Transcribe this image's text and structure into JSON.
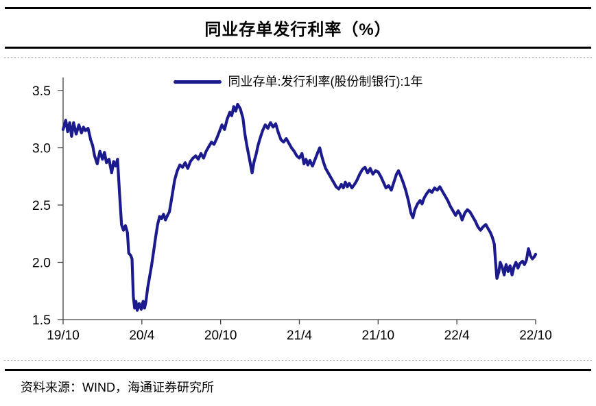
{
  "header": {
    "title": "同业存单发行利率（%）"
  },
  "legend": {
    "label": "同业存单:发行利率(股份制银行):1年"
  },
  "footer": {
    "source": "资料来源：WIND，海通证券研究所"
  },
  "colors": {
    "line": "#1b1b8e",
    "axis": "#404040",
    "text": "#000000",
    "panel_border": "#b0b0b0"
  },
  "chart_data": {
    "type": "line",
    "title": "同业存单发行利率（%）",
    "xlabel": "",
    "ylabel": "",
    "ylim": [
      1.5,
      3.5
    ],
    "xlim": [
      0,
      36
    ],
    "grid": false,
    "legend_position": "top-center",
    "x_unit": "months since 2019-10",
    "yticks": [
      "3.5",
      "3.0",
      "2.5",
      "2.0",
      "1.5"
    ],
    "xticks": [
      {
        "m": 0,
        "label": "19/10"
      },
      {
        "m": 6,
        "label": "20/4"
      },
      {
        "m": 12,
        "label": "20/10"
      },
      {
        "m": 18,
        "label": "21/4"
      },
      {
        "m": 24,
        "label": "21/10"
      },
      {
        "m": 30,
        "label": "22/4"
      },
      {
        "m": 36,
        "label": "22/10"
      }
    ],
    "series": [
      {
        "name": "同业存单:发行利率(股份制银行):1年",
        "points": [
          [
            0.0,
            3.16
          ],
          [
            0.2,
            3.24
          ],
          [
            0.35,
            3.14
          ],
          [
            0.5,
            3.22
          ],
          [
            0.65,
            3.1
          ],
          [
            0.8,
            3.22
          ],
          [
            1.0,
            3.12
          ],
          [
            1.2,
            3.2
          ],
          [
            1.4,
            3.13
          ],
          [
            1.55,
            3.18
          ],
          [
            1.7,
            3.15
          ],
          [
            1.9,
            3.17
          ],
          [
            2.1,
            3.07
          ],
          [
            2.25,
            3.02
          ],
          [
            2.4,
            2.93
          ],
          [
            2.6,
            2.86
          ],
          [
            2.8,
            2.97
          ],
          [
            3.0,
            2.9
          ],
          [
            3.15,
            2.96
          ],
          [
            3.3,
            2.87
          ],
          [
            3.5,
            2.9
          ],
          [
            3.7,
            2.78
          ],
          [
            3.85,
            2.88
          ],
          [
            4.0,
            2.84
          ],
          [
            4.15,
            2.9
          ],
          [
            4.3,
            2.6
          ],
          [
            4.45,
            2.33
          ],
          [
            4.6,
            2.28
          ],
          [
            4.75,
            2.32
          ],
          [
            4.9,
            2.26
          ],
          [
            5.0,
            2.08
          ],
          [
            5.15,
            2.06
          ],
          [
            5.25,
            2.03
          ],
          [
            5.35,
            1.7
          ],
          [
            5.45,
            1.6
          ],
          [
            5.55,
            1.66
          ],
          [
            5.65,
            1.58
          ],
          [
            5.8,
            1.64
          ],
          [
            5.95,
            1.59
          ],
          [
            6.1,
            1.66
          ],
          [
            6.2,
            1.6
          ],
          [
            6.3,
            1.65
          ],
          [
            6.45,
            1.78
          ],
          [
            6.6,
            1.88
          ],
          [
            6.75,
            1.98
          ],
          [
            6.9,
            2.1
          ],
          [
            7.05,
            2.22
          ],
          [
            7.2,
            2.33
          ],
          [
            7.35,
            2.4
          ],
          [
            7.5,
            2.38
          ],
          [
            7.65,
            2.42
          ],
          [
            7.8,
            2.37
          ],
          [
            7.95,
            2.41
          ],
          [
            8.1,
            2.44
          ],
          [
            8.3,
            2.58
          ],
          [
            8.5,
            2.72
          ],
          [
            8.7,
            2.8
          ],
          [
            8.9,
            2.85
          ],
          [
            9.1,
            2.83
          ],
          [
            9.3,
            2.87
          ],
          [
            9.5,
            2.82
          ],
          [
            9.7,
            2.88
          ],
          [
            9.9,
            2.91
          ],
          [
            10.1,
            2.93
          ],
          [
            10.3,
            2.9
          ],
          [
            10.5,
            2.95
          ],
          [
            10.7,
            2.91
          ],
          [
            10.9,
            2.97
          ],
          [
            11.1,
            3.01
          ],
          [
            11.3,
            3.05
          ],
          [
            11.5,
            3.03
          ],
          [
            11.7,
            3.08
          ],
          [
            11.9,
            3.14
          ],
          [
            12.1,
            3.2
          ],
          [
            12.3,
            3.16
          ],
          [
            12.5,
            3.25
          ],
          [
            12.7,
            3.31
          ],
          [
            12.85,
            3.28
          ],
          [
            13.0,
            3.36
          ],
          [
            13.15,
            3.32
          ],
          [
            13.3,
            3.38
          ],
          [
            13.5,
            3.34
          ],
          [
            13.7,
            3.26
          ],
          [
            13.85,
            3.12
          ],
          [
            14.0,
            3.02
          ],
          [
            14.2,
            2.9
          ],
          [
            14.4,
            2.78
          ],
          [
            14.55,
            2.88
          ],
          [
            14.7,
            2.94
          ],
          [
            14.85,
            3.02
          ],
          [
            15.0,
            3.08
          ],
          [
            15.2,
            3.15
          ],
          [
            15.4,
            3.2
          ],
          [
            15.6,
            3.17
          ],
          [
            15.8,
            3.22
          ],
          [
            16.0,
            3.18
          ],
          [
            16.2,
            3.21
          ],
          [
            16.4,
            3.13
          ],
          [
            16.6,
            3.07
          ],
          [
            16.8,
            3.05
          ],
          [
            17.0,
            3.08
          ],
          [
            17.2,
            3.04
          ],
          [
            17.4,
            3.0
          ],
          [
            17.6,
            2.97
          ],
          [
            17.8,
            2.93
          ],
          [
            18.0,
            2.91
          ],
          [
            18.2,
            2.95
          ],
          [
            18.35,
            2.86
          ],
          [
            18.5,
            2.9
          ],
          [
            18.65,
            2.85
          ],
          [
            18.8,
            2.89
          ],
          [
            19.0,
            2.84
          ],
          [
            19.2,
            2.9
          ],
          [
            19.4,
            2.96
          ],
          [
            19.55,
            3.0
          ],
          [
            19.7,
            2.93
          ],
          [
            19.85,
            2.87
          ],
          [
            20.0,
            2.82
          ],
          [
            20.2,
            2.78
          ],
          [
            20.4,
            2.74
          ],
          [
            20.6,
            2.7
          ],
          [
            20.8,
            2.66
          ],
          [
            21.0,
            2.64
          ],
          [
            21.2,
            2.68
          ],
          [
            21.35,
            2.65
          ],
          [
            21.5,
            2.7
          ],
          [
            21.65,
            2.66
          ],
          [
            21.8,
            2.69
          ],
          [
            22.0,
            2.65
          ],
          [
            22.2,
            2.68
          ],
          [
            22.4,
            2.72
          ],
          [
            22.6,
            2.77
          ],
          [
            22.8,
            2.81
          ],
          [
            23.0,
            2.83
          ],
          [
            23.2,
            2.78
          ],
          [
            23.4,
            2.82
          ],
          [
            23.6,
            2.77
          ],
          [
            23.8,
            2.8
          ],
          [
            24.0,
            2.79
          ],
          [
            24.2,
            2.75
          ],
          [
            24.4,
            2.7
          ],
          [
            24.6,
            2.65
          ],
          [
            24.8,
            2.67
          ],
          [
            25.0,
            2.63
          ],
          [
            25.2,
            2.7
          ],
          [
            25.4,
            2.77
          ],
          [
            25.55,
            2.8
          ],
          [
            25.7,
            2.76
          ],
          [
            25.9,
            2.7
          ],
          [
            26.1,
            2.63
          ],
          [
            26.3,
            2.54
          ],
          [
            26.5,
            2.43
          ],
          [
            26.65,
            2.39
          ],
          [
            26.8,
            2.46
          ],
          [
            27.0,
            2.51
          ],
          [
            27.2,
            2.54
          ],
          [
            27.35,
            2.51
          ],
          [
            27.5,
            2.56
          ],
          [
            27.7,
            2.6
          ],
          [
            27.9,
            2.63
          ],
          [
            28.1,
            2.61
          ],
          [
            28.3,
            2.65
          ],
          [
            28.5,
            2.63
          ],
          [
            28.7,
            2.66
          ],
          [
            28.9,
            2.62
          ],
          [
            29.1,
            2.58
          ],
          [
            29.3,
            2.54
          ],
          [
            29.5,
            2.49
          ],
          [
            29.7,
            2.45
          ],
          [
            29.9,
            2.41
          ],
          [
            30.1,
            2.45
          ],
          [
            30.25,
            2.42
          ],
          [
            30.4,
            2.37
          ],
          [
            30.6,
            2.43
          ],
          [
            30.8,
            2.46
          ],
          [
            31.0,
            2.44
          ],
          [
            31.2,
            2.4
          ],
          [
            31.4,
            2.36
          ],
          [
            31.6,
            2.31
          ],
          [
            31.8,
            2.28
          ],
          [
            32.0,
            2.31
          ],
          [
            32.2,
            2.33
          ],
          [
            32.4,
            2.29
          ],
          [
            32.55,
            2.26
          ],
          [
            32.7,
            2.22
          ],
          [
            32.85,
            2.16
          ],
          [
            32.95,
            2.0
          ],
          [
            33.05,
            1.86
          ],
          [
            33.2,
            1.92
          ],
          [
            33.3,
            2.0
          ],
          [
            33.45,
            1.96
          ],
          [
            33.6,
            1.89
          ],
          [
            33.75,
            1.98
          ],
          [
            33.9,
            1.92
          ],
          [
            34.05,
            1.97
          ],
          [
            34.2,
            1.89
          ],
          [
            34.35,
            1.96
          ],
          [
            34.5,
            2.0
          ],
          [
            34.65,
            1.95
          ],
          [
            34.8,
            1.99
          ],
          [
            35.0,
            2.01
          ],
          [
            35.15,
            1.98
          ],
          [
            35.3,
            2.02
          ],
          [
            35.45,
            2.12
          ],
          [
            35.6,
            2.06
          ],
          [
            35.75,
            2.03
          ],
          [
            35.9,
            2.05
          ],
          [
            36.0,
            2.07
          ]
        ]
      }
    ]
  }
}
